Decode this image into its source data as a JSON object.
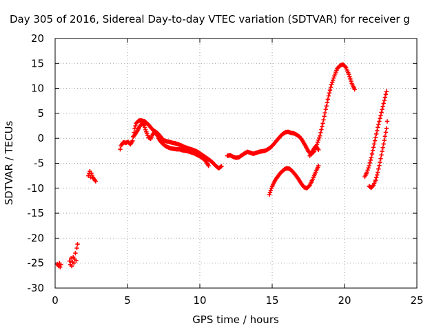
{
  "chart_data": {
    "type": "scatter",
    "title": "Day 305 of 2016, Sidereal Day-to-day VTEC variation (SDTVAR) for receiver g",
    "xlabel": "GPS time / hours",
    "ylabel": "SDTVAR / TECUs",
    "xlim": [
      0,
      25
    ],
    "ylim": [
      -30,
      20
    ],
    "xticks": [
      0,
      5,
      10,
      15,
      20,
      25
    ],
    "yticks": [
      -30,
      -25,
      -20,
      -15,
      -10,
      -5,
      0,
      5,
      10,
      15,
      20
    ],
    "grid": true,
    "marker": "plus",
    "color": "#ff0000",
    "series": [
      {
        "x": [
          0.15,
          0.25,
          0.3,
          0.35,
          0.4
        ],
        "y": [
          -25.2,
          -25.6,
          -25.0,
          -25.8,
          -25.3
        ]
      },
      {
        "x": [
          1.0,
          1.05,
          1.1,
          1.15,
          1.2,
          1.25,
          1.3,
          1.35,
          1.4,
          1.45,
          1.5,
          1.55
        ],
        "y": [
          -24.6,
          -25.3,
          -24.0,
          -25.6,
          -24.8,
          -23.8,
          -25.0,
          -24.2,
          -23.0,
          -24.5,
          -22.0,
          -21.2
        ]
      },
      {
        "x": [
          2.3,
          2.4,
          2.45,
          2.5,
          2.6,
          2.7,
          2.8
        ],
        "y": [
          -7.5,
          -6.6,
          -7.8,
          -7.0,
          -7.8,
          -8.2,
          -8.6
        ]
      },
      {
        "x": [
          4.5,
          4.55,
          4.7,
          4.9,
          5.05,
          5.2,
          5.35,
          5.5,
          5.6,
          5.75,
          5.9,
          6.05,
          6.2,
          6.35,
          6.5,
          6.65,
          6.8,
          6.95,
          7.1,
          7.3,
          7.5,
          7.7,
          7.9,
          8.1,
          8.3,
          8.5,
          8.7,
          8.9,
          9.1,
          9.3,
          9.5,
          9.7,
          9.9,
          10.1,
          10.3,
          10.5,
          10.7,
          10.9,
          11.1,
          11.3,
          11.5
        ],
        "y": [
          -2.2,
          -1.5,
          -0.8,
          -0.9,
          -0.7,
          -1.2,
          -0.5,
          2.0,
          3.0,
          3.5,
          3.6,
          3.5,
          3.4,
          3.0,
          2.6,
          2.0,
          1.6,
          1.3,
          1.0,
          0.3,
          -0.4,
          -0.6,
          -0.7,
          -0.9,
          -1.0,
          -1.2,
          -1.4,
          -1.7,
          -1.9,
          -2.1,
          -2.3,
          -2.5,
          -2.8,
          -3.2,
          -3.6,
          -4.0,
          -4.4,
          -4.9,
          -5.5,
          -6.0,
          -5.6
        ]
      },
      {
        "x": [
          5.4,
          5.55,
          5.7,
          5.85,
          6.0,
          6.15,
          6.3,
          6.45,
          6.6,
          6.75,
          6.9,
          7.05,
          7.2,
          7.4,
          7.6,
          7.8,
          8.0,
          8.2,
          8.4,
          8.6,
          8.8,
          9.0,
          9.2,
          9.4,
          9.6,
          9.8,
          10.0,
          10.2,
          10.4,
          10.6
        ],
        "y": [
          0.3,
          0.9,
          1.6,
          2.4,
          3.0,
          2.6,
          1.3,
          0.2,
          -0.1,
          0.8,
          1.4,
          0.6,
          -0.3,
          -1.0,
          -1.5,
          -1.8,
          -2.0,
          -2.1,
          -2.2,
          -2.2,
          -2.4,
          -2.5,
          -2.6,
          -2.8,
          -3.0,
          -3.3,
          -3.6,
          -4.0,
          -4.5,
          -5.5
        ]
      },
      {
        "x": [
          11.9,
          12.1,
          12.3,
          12.5,
          12.7,
          12.9,
          13.1,
          13.3,
          13.5,
          13.7,
          13.9,
          14.1,
          14.3,
          14.5,
          14.7,
          14.9,
          15.1,
          15.3,
          15.5,
          15.7,
          15.9,
          16.1,
          16.3,
          16.5,
          16.7,
          16.9,
          17.1,
          17.3,
          17.5,
          17.7,
          17.9,
          18.1,
          18.3,
          18.5,
          18.7,
          18.9,
          19.1,
          19.3,
          19.5,
          19.7,
          19.9,
          20.1,
          20.3,
          20.5,
          20.7
        ],
        "y": [
          -3.5,
          -3.4,
          -3.7,
          -3.9,
          -3.8,
          -3.4,
          -3.0,
          -2.7,
          -2.9,
          -3.1,
          -2.9,
          -2.7,
          -2.6,
          -2.5,
          -2.2,
          -1.8,
          -1.2,
          -0.5,
          0.2,
          0.8,
          1.2,
          1.3,
          1.1,
          1.0,
          0.7,
          0.3,
          -0.5,
          -1.5,
          -2.6,
          -3.2,
          -2.6,
          -1.2,
          0.5,
          3.0,
          5.8,
          8.5,
          10.8,
          12.5,
          14.0,
          14.6,
          14.8,
          14.2,
          12.8,
          11.0,
          9.8
        ]
      },
      {
        "x": [
          17.6,
          17.7,
          17.8,
          17.9,
          18.0,
          18.1,
          18.2
        ],
        "y": [
          -3.5,
          -2.9,
          -2.5,
          -2.0,
          -1.6,
          -1.9,
          -2.3
        ]
      },
      {
        "x": [
          14.8,
          14.95,
          15.1,
          15.25,
          15.4,
          15.55,
          15.7,
          15.85,
          16.0,
          16.2,
          16.4,
          16.6,
          16.8,
          17.0,
          17.2,
          17.4,
          17.6,
          17.8,
          18.0,
          18.2
        ],
        "y": [
          -11.3,
          -10.0,
          -9.0,
          -8.2,
          -7.6,
          -7.0,
          -6.6,
          -6.2,
          -6.0,
          -6.1,
          -6.6,
          -7.3,
          -8.1,
          -9.0,
          -9.8,
          -10.0,
          -9.4,
          -8.2,
          -6.8,
          -5.5
        ]
      },
      {
        "x": [
          21.4,
          21.55,
          21.7,
          21.85,
          22.0,
          22.15,
          22.3,
          22.45,
          22.6,
          22.75,
          22.9
        ],
        "y": [
          -7.7,
          -6.8,
          -5.5,
          -3.8,
          -1.8,
          0.2,
          2.2,
          4.0,
          5.8,
          7.6,
          9.4
        ]
      },
      {
        "x": [
          21.7,
          21.85,
          22.0,
          22.15,
          22.3,
          22.45,
          22.6,
          22.75,
          22.9,
          22.95
        ],
        "y": [
          -9.6,
          -9.9,
          -9.4,
          -8.4,
          -6.8,
          -4.8,
          -2.6,
          -0.4,
          2.0,
          3.4
        ]
      }
    ]
  }
}
